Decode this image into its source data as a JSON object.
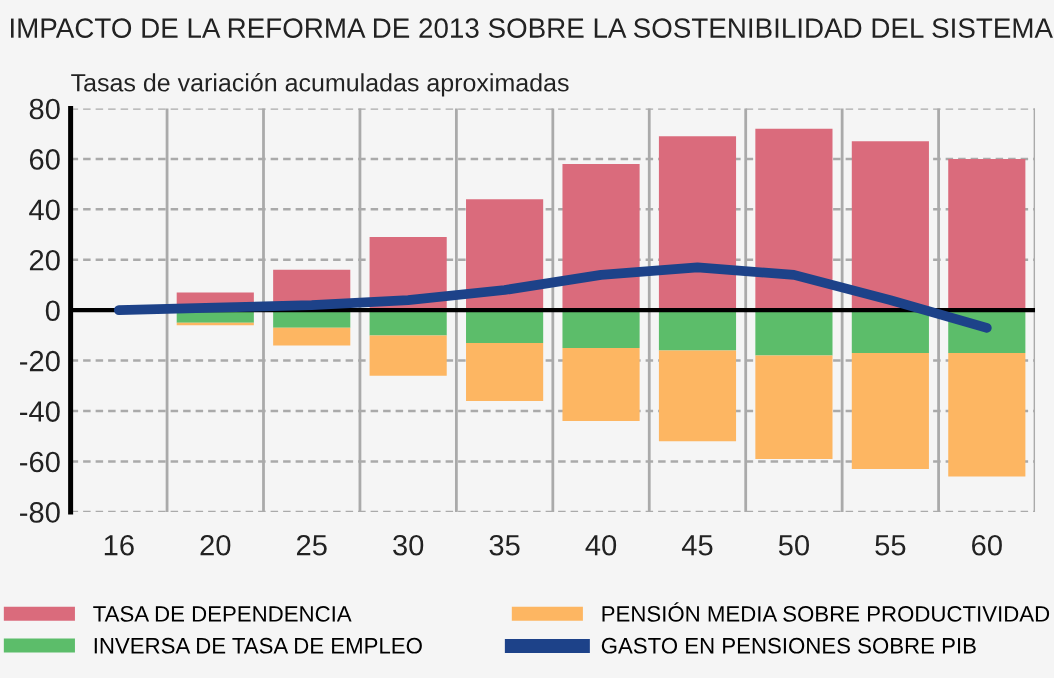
{
  "chart_data": {
    "type": "bar",
    "stacked": true,
    "title": "IMPACTO DE LA REFORMA DE 2013 SOBRE LA SOSTENIBILIDAD DEL SISTEMA",
    "subtitle": "Tasas de variación acumuladas aproximadas",
    "categories": [
      "16",
      "20",
      "25",
      "30",
      "35",
      "40",
      "45",
      "50",
      "55",
      "60"
    ],
    "series": [
      {
        "name": "TASA DE DEPENDENCIA",
        "color": "#da6b7c",
        "values": [
          null,
          7,
          16,
          29,
          44,
          58,
          69,
          72,
          67,
          60
        ]
      },
      {
        "name": "INVERSA DE TASA DE EMPLEO",
        "color": "#5cbd6a",
        "values": [
          null,
          -5,
          -7,
          -10,
          -13,
          -15,
          -16,
          -18,
          -17,
          -17
        ]
      },
      {
        "name": "PENSIÓN MEDIA SOBRE PRODUCTIVIDAD",
        "color": "#fdb662",
        "values": [
          null,
          -1,
          -7,
          -16,
          -23,
          -29,
          -36,
          -41,
          -46,
          -49
        ]
      },
      {
        "name": "GASTO EN PENSIONES SOBRE PIB",
        "color": "#1d4289",
        "type": "line",
        "values": [
          0,
          1,
          2,
          4,
          8,
          14,
          17,
          14,
          4,
          -7
        ]
      }
    ],
    "ylim": [
      -80,
      80
    ],
    "yticks": [
      -80,
      -60,
      -40,
      -20,
      0,
      20,
      40,
      60,
      80
    ],
    "grid": true,
    "legend": "bottom",
    "marker": "none",
    "line_style": "solid"
  }
}
